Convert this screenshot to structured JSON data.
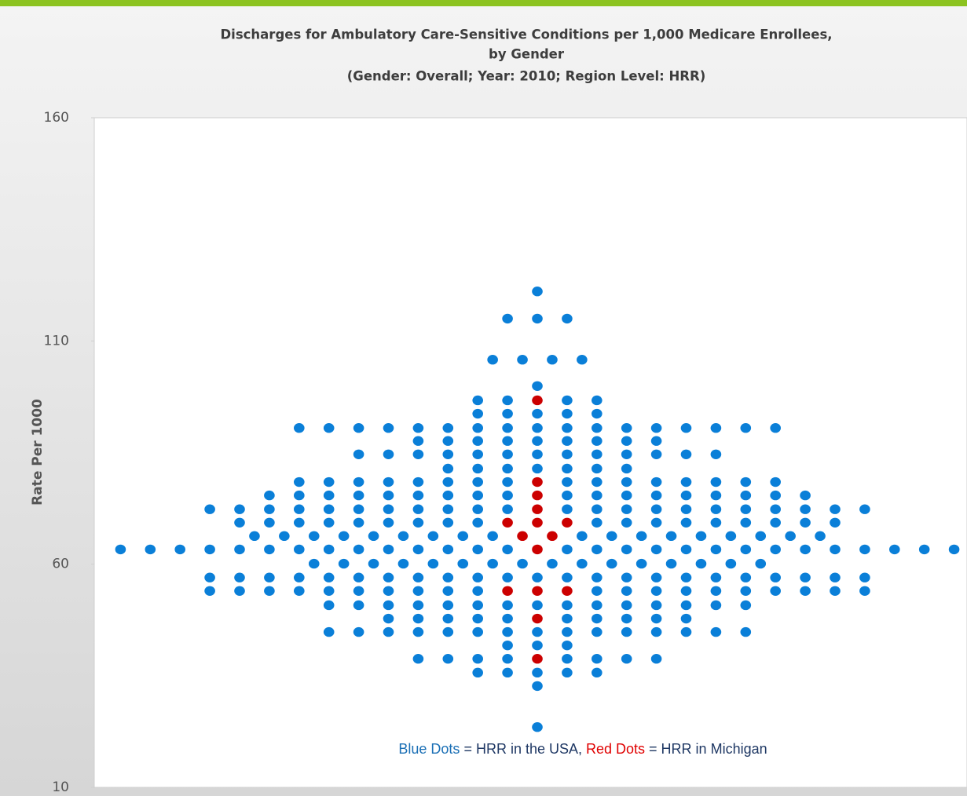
{
  "chart_data": {
    "type": "beeswarm",
    "title": [
      "Discharges for Ambulatory Care-Sensitive Conditions per 1,000 Medicare Enrollees,",
      "by Gender"
    ],
    "subtitle": "(Gender: Overall; Year: 2010; Region Level: HRR)",
    "y_label": "Rate Per 1000",
    "ylim": [
      10,
      160
    ],
    "yticks": [
      10,
      60,
      110,
      160
    ],
    "annotation": [
      "Blue Dots",
      " = HRR in the USA, ",
      "Red Dots",
      " = HRR in Michigan"
    ],
    "series": [
      {
        "color": "#0a7fd8",
        "values": [
          121.1,
          115,
          115,
          115,
          105.8,
          105.8,
          105.8,
          105.8,
          99.9,
          96.7,
          96.7,
          96.7,
          96.7,
          93.7,
          93.7,
          93.7,
          93.7,
          93.7,
          90.5,
          90.5,
          90.5,
          90.5,
          90.5,
          90.5,
          90.5,
          90.5,
          90.5,
          90.5,
          90.5,
          90.5,
          90.5,
          90.5,
          90.5,
          90.5,
          90.5,
          87.6,
          87.6,
          87.6,
          87.6,
          87.6,
          87.6,
          87.6,
          87.6,
          87.6,
          84.6,
          84.6,
          84.6,
          84.6,
          84.6,
          84.6,
          84.6,
          84.6,
          84.6,
          84.6,
          84.6,
          84.6,
          84.6,
          81.4,
          81.4,
          81.4,
          81.4,
          81.4,
          81.4,
          81.4,
          78.4,
          78.4,
          78.4,
          78.4,
          78.4,
          78.4,
          78.4,
          78.4,
          78.4,
          78.4,
          78.4,
          78.4,
          78.4,
          78.4,
          78.4,
          78.4,
          75.4,
          75.4,
          75.4,
          75.4,
          75.4,
          75.4,
          75.4,
          75.4,
          75.4,
          75.4,
          75.4,
          75.4,
          75.4,
          75.4,
          75.4,
          75.4,
          75.4,
          75.4,
          72.3,
          72.3,
          72.3,
          72.3,
          72.3,
          72.3,
          72.3,
          72.3,
          72.3,
          72.3,
          72.3,
          72.3,
          72.3,
          72.3,
          72.3,
          72.3,
          72.3,
          72.3,
          72.3,
          72.3,
          72.3,
          72.3,
          69.3,
          69.3,
          69.3,
          69.3,
          69.3,
          69.3,
          69.3,
          69.3,
          69.3,
          69.3,
          69.3,
          69.3,
          69.3,
          69.3,
          69.3,
          69.3,
          69.3,
          69.3,
          66.3,
          66.3,
          66.3,
          66.3,
          66.3,
          66.3,
          66.3,
          66.3,
          66.3,
          66.3,
          66.3,
          66.3,
          66.3,
          66.3,
          66.3,
          66.3,
          66.3,
          66.3,
          63.3,
          63.3,
          63.3,
          63.3,
          63.3,
          63.3,
          63.3,
          63.3,
          63.3,
          63.3,
          63.3,
          63.3,
          63.3,
          63.3,
          63.3,
          63.3,
          63.3,
          63.3,
          63.3,
          63.3,
          63.3,
          63.3,
          63.3,
          63.3,
          63.3,
          63.3,
          63.3,
          63.3,
          60.1,
          60.1,
          60.1,
          60.1,
          60.1,
          60.1,
          60.1,
          60.1,
          60.1,
          60.1,
          60.1,
          60.1,
          60.1,
          60.1,
          60.1,
          60.1,
          57,
          57,
          57,
          57,
          57,
          57,
          57,
          57,
          57,
          57,
          57,
          57,
          57,
          57,
          57,
          57,
          57,
          57,
          57,
          57,
          57,
          57,
          57,
          54,
          54,
          54,
          54,
          54,
          54,
          54,
          54,
          54,
          54,
          54,
          54,
          54,
          54,
          54,
          54,
          54,
          54,
          54,
          54,
          50.8,
          50.8,
          50.8,
          50.8,
          50.8,
          50.8,
          50.8,
          50.8,
          50.8,
          50.8,
          50.8,
          50.8,
          50.8,
          50.8,
          50.8,
          47.8,
          47.8,
          47.8,
          47.8,
          47.8,
          47.8,
          47.8,
          47.8,
          47.8,
          47.8,
          44.8,
          44.8,
          44.8,
          44.8,
          44.8,
          44.8,
          44.8,
          44.8,
          44.8,
          44.8,
          44.8,
          44.8,
          44.8,
          44.8,
          44.8,
          41.8,
          41.8,
          41.8,
          38.8,
          38.8,
          38.8,
          38.8,
          38.8,
          38.8,
          38.8,
          38.8,
          35.7,
          35.7,
          35.7,
          35.7,
          35.7,
          32.7,
          23.5
        ]
      },
      {
        "color": "#cc0000",
        "values": [
          96.7,
          78.4,
          75.4,
          72.3,
          69.3,
          69.3,
          69.3,
          66.3,
          66.3,
          63.3,
          54,
          54,
          54,
          47.8,
          38.8
        ]
      }
    ]
  }
}
